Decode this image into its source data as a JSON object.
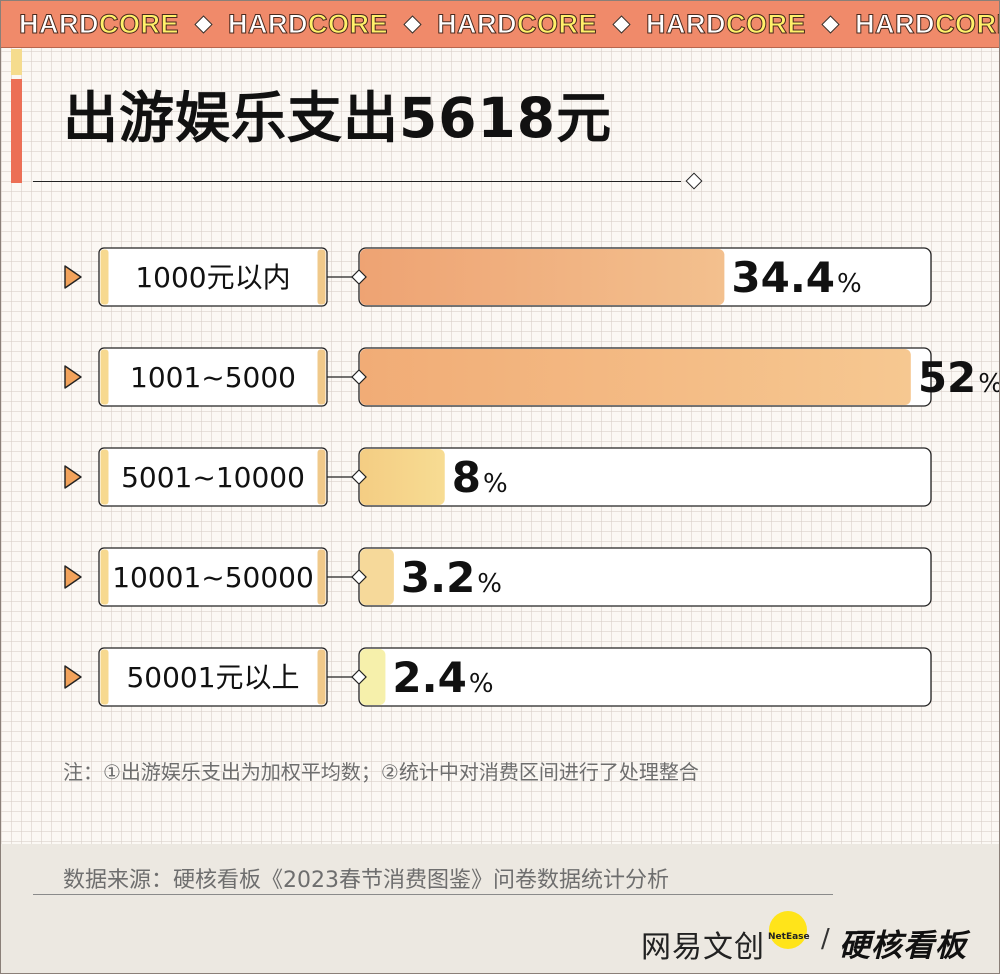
{
  "banner": {
    "items": [
      {
        "plain": "HARD",
        "accent": "CORE"
      },
      {
        "plain": "HARD",
        "accent": "CORE"
      },
      {
        "plain": "HARD",
        "accent": "CORE"
      },
      {
        "plain": "HARD",
        "accent": "CORE"
      },
      {
        "plain": "HARD",
        "accent": "CORE"
      }
    ]
  },
  "title": "出游娱乐支出5618元",
  "note": "注：①出游娱乐支出为加权平均数；②统计中对消费区间进行了处理整合",
  "source": "数据来源：硬核看板《2023春节消费图鉴》问卷数据统计分析",
  "logos": {
    "netease_wenchuang": "网易文创",
    "netease_en": "NetEase",
    "slash": "/",
    "hardcore_board": "硬核看板"
  },
  "chart_data": {
    "type": "bar",
    "orientation": "horizontal",
    "categories": [
      "1000元以内",
      "1001~5000",
      "5001~10000",
      "10001~50000",
      "50001元以上"
    ],
    "values": [
      34.4,
      52,
      8,
      3.2,
      2.4
    ],
    "value_labels": [
      "34.4",
      "52",
      "8",
      "3.2",
      "2.4"
    ],
    "unit": "%",
    "colors": {
      "bars": [
        [
          "#eea373",
          "#f3c08e"
        ],
        [
          "#f1ac76",
          "#f6c891"
        ],
        [
          "#f4cd83",
          "#f7dc93"
        ],
        [
          "#f6d99a",
          "#f6d99a"
        ],
        [
          "#f6f0ab",
          "#f6f0ab"
        ]
      ],
      "label_stripe_left": "#f7d98f",
      "label_stripe_right": "#f0c98a",
      "outline": "#222222",
      "arrow": "#f2a35c"
    },
    "grid": false
  }
}
